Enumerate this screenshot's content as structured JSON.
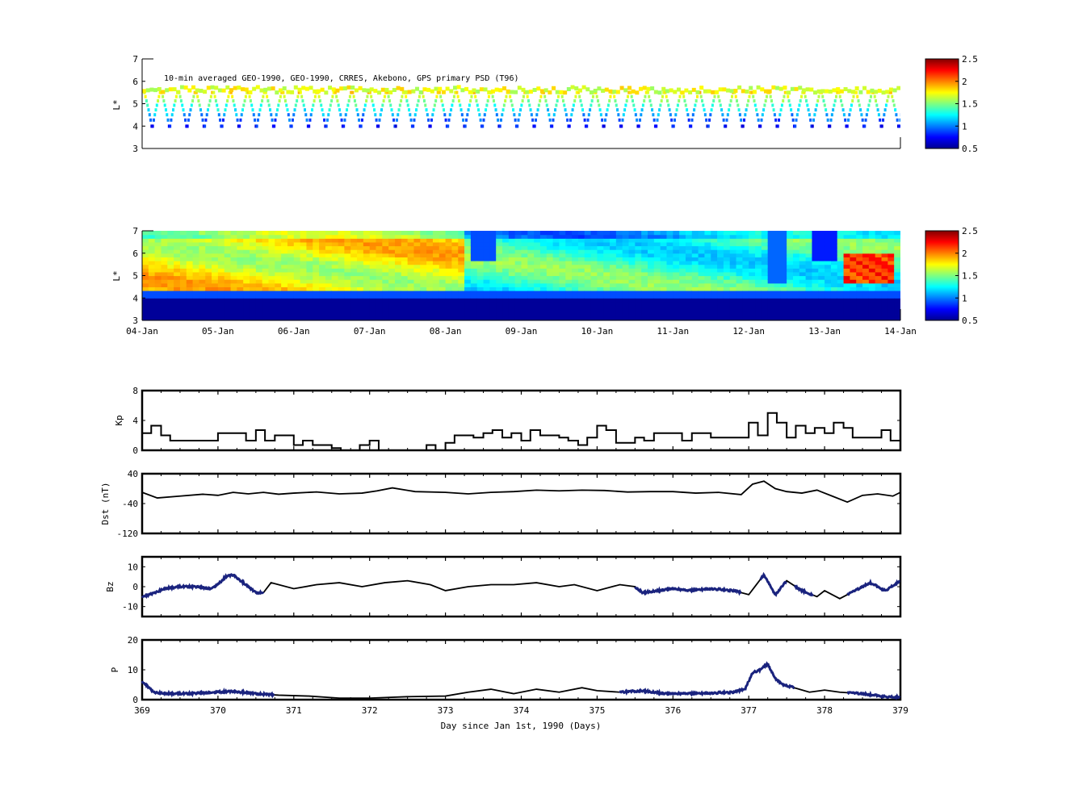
{
  "figure": {
    "colors": {
      "background": "#ffffff",
      "axes": "#000000",
      "thin_line": "#000000",
      "thick_line": "#1a237e",
      "colormap": "jet"
    }
  },
  "chart_data": [
    {
      "id": "psd-observed",
      "type": "heatmap",
      "title": "10-min averaged GEO-1990, GEO-1990, CRRES, Akebono, GPS  primary PSD (T96)",
      "ylabel": "L*",
      "ylim": [
        3,
        7
      ],
      "yticks": [
        "3",
        "4",
        "5",
        "6",
        "7"
      ],
      "xlim": [
        369,
        379
      ],
      "xticks": [],
      "colorbar": {
        "range": [
          0.5,
          2.5
        ],
        "ticks": [
          "0.5",
          "1",
          "1.5",
          "2",
          "2.5"
        ]
      },
      "description": "Sparse satellite orbit tracks: near-periodic V-shaped passes from L~5.5 down to L~3.8 roughly every 5.5 hours, values mostly 1.5-2 at high L and ~0.7 at low L",
      "orbit_period_days": 0.229,
      "track_top_L": 5.5,
      "track_min_L": 3.8
    },
    {
      "id": "psd-reanalysis",
      "type": "heatmap",
      "ylabel": "L*",
      "ylim": [
        3,
        7
      ],
      "yticks": [
        "3",
        "4",
        "5",
        "6",
        "7"
      ],
      "xlim": [
        369,
        379
      ],
      "xticks": [
        "04-Jan",
        "05-Jan",
        "06-Jan",
        "07-Jan",
        "08-Jan",
        "09-Jan",
        "10-Jan",
        "11-Jan",
        "12-Jan",
        "13-Jan",
        "14-Jan"
      ],
      "colorbar": {
        "range": [
          0.5,
          2.5
        ],
        "ticks": [
          "0.5",
          "1",
          "1.5",
          "2",
          "2.5"
        ]
      },
      "description": "Continuous PSD map: L<4 near 0.5; L 4.5-6.5 around 1.6-1.9 on Jan 4-8, dropping near 1.2-1.5 after Jan 8; dropouts near Jan 8.4 and Jan 12.3-13.3, enhancements near Jan 13"
    },
    {
      "id": "kp",
      "type": "line",
      "ylabel": "Kp",
      "ylim": [
        0,
        8
      ],
      "yticks": [
        "0",
        "4",
        "8"
      ],
      "xlim": [
        369,
        379
      ],
      "xticks": [],
      "series": [
        {
          "style": "step",
          "x": [
            369,
            369.12,
            369.25,
            369.37,
            369.5,
            370,
            370.37,
            370.5,
            370.62,
            370.75,
            371,
            371.12,
            371.25,
            371.5,
            371.62,
            371.87,
            372,
            372.12,
            372.25,
            372.5,
            372.75,
            372.87,
            373,
            373.12,
            373.37,
            373.5,
            373.62,
            373.75,
            373.87,
            374,
            374.12,
            374.25,
            374.5,
            374.62,
            374.75,
            374.87,
            375,
            375.12,
            375.25,
            375.5,
            375.62,
            375.75,
            376,
            376.12,
            376.25,
            376.5,
            376.75,
            377,
            377.12,
            377.25,
            377.37,
            377.5,
            377.62,
            377.75,
            377.87,
            378,
            378.12,
            378.25,
            378.37,
            378.5,
            378.75,
            378.87,
            379
          ],
          "y": [
            2.3,
            3.3,
            2,
            1.3,
            1.3,
            2.3,
            1.3,
            2.7,
            1.3,
            2,
            0.7,
            1.3,
            0.7,
            0.3,
            0,
            0.7,
            1.3,
            0,
            0,
            0,
            0.7,
            0,
            1,
            2,
            1.7,
            2.3,
            2.7,
            1.7,
            2.3,
            1.3,
            2.7,
            2,
            1.7,
            1.3,
            0.7,
            1.7,
            3.3,
            2.7,
            1,
            1.7,
            1.3,
            2.3,
            2.3,
            1.3,
            2.3,
            1.7,
            1.7,
            3.7,
            2,
            5,
            3.7,
            1.7,
            3.3,
            2.3,
            3,
            2.3,
            3.7,
            3,
            1.7,
            1.7,
            2.7,
            1.3,
            1.3
          ]
        }
      ]
    },
    {
      "id": "dst",
      "type": "line",
      "ylabel": "Dst (nT)",
      "ylim": [
        -120,
        40
      ],
      "yticks": [
        "-120",
        "-40",
        "40"
      ],
      "xlim": [
        369,
        379
      ],
      "xticks": [],
      "series": [
        {
          "style": "line",
          "x": [
            369,
            369.2,
            369.5,
            369.8,
            370,
            370.2,
            370.4,
            370.6,
            370.8,
            371,
            371.3,
            371.6,
            371.9,
            372.1,
            372.3,
            372.6,
            373,
            373.3,
            373.6,
            373.9,
            374.2,
            374.5,
            374.8,
            375.1,
            375.4,
            375.7,
            376,
            376.3,
            376.6,
            376.9,
            377.05,
            377.2,
            377.35,
            377.5,
            377.7,
            377.9,
            378.1,
            378.3,
            378.5,
            378.7,
            378.9,
            379
          ],
          "y": [
            -10,
            -25,
            -20,
            -15,
            -18,
            -10,
            -14,
            -10,
            -15,
            -12,
            -9,
            -14,
            -12,
            -6,
            2,
            -8,
            -10,
            -14,
            -10,
            -8,
            -4,
            -6,
            -4,
            -5,
            -9,
            -8,
            -8,
            -12,
            -10,
            -16,
            12,
            20,
            0,
            -8,
            -12,
            -4,
            -20,
            -36,
            -18,
            -14,
            -20,
            -10
          ]
        }
      ]
    },
    {
      "id": "bz",
      "type": "line",
      "ylabel": "Bz",
      "ylim": [
        -15,
        15
      ],
      "yticks": [
        "-10",
        "0",
        "10"
      ],
      "xlim": [
        369,
        379
      ],
      "xticks": [],
      "series": [
        {
          "style": "line",
          "x": [
            369,
            369.1,
            369.3,
            369.5,
            369.7,
            369.9,
            370,
            370.1,
            370.2,
            370.3,
            370.4,
            370.5,
            370.6,
            370.7,
            371,
            371.3,
            371.6,
            371.9,
            372.2,
            372.5,
            372.8,
            373,
            373.3,
            373.6,
            373.9,
            374.2,
            374.5,
            374.7,
            375,
            375.3,
            375.5,
            375.6,
            375.8,
            376,
            376.2,
            376.5,
            376.8,
            377,
            377.1,
            377.2,
            377.35,
            377.5,
            377.7,
            377.9,
            378,
            378.2,
            378.4,
            378.6,
            378.8,
            379
          ],
          "y": [
            -5,
            -4,
            -1,
            0,
            0,
            -1,
            1,
            5,
            6,
            3,
            0,
            -3,
            -3,
            2,
            -1,
            1,
            2,
            0,
            2,
            3,
            1,
            -2,
            0,
            1,
            1,
            2,
            0,
            1,
            -2,
            1,
            0,
            -3,
            -2,
            -1,
            -2,
            -1,
            -2,
            -4,
            1,
            6,
            -4,
            3,
            -2,
            -5,
            -2,
            -6,
            -2,
            2,
            -2,
            3
          ]
        },
        {
          "style": "noisy",
          "segments": [
            [
              369,
              370.6
            ],
            [
              375.5,
              376.9
            ],
            [
              377.15,
              377.5
            ],
            [
              377.6,
              377.85
            ],
            [
              378.3,
              379
            ]
          ]
        }
      ]
    },
    {
      "id": "p",
      "type": "line",
      "ylabel": "P",
      "ylim": [
        0,
        20
      ],
      "yticks": [
        "0",
        "10",
        "20"
      ],
      "xlim": [
        369,
        379
      ],
      "xticks": [
        "369",
        "370",
        "371",
        "372",
        "373",
        "374",
        "375",
        "376",
        "377",
        "378",
        "379"
      ],
      "xlabel": "Day since Jan 1st, 1990 (Days)",
      "series": [
        {
          "style": "line",
          "x": [
            369,
            369.05,
            369.15,
            369.3,
            369.6,
            370,
            370.2,
            370.5,
            370.8,
            371.2,
            371.6,
            372,
            372.5,
            373,
            373.3,
            373.6,
            373.9,
            374.2,
            374.5,
            374.8,
            375,
            375.3,
            375.6,
            375.9,
            376.2,
            376.5,
            376.8,
            376.95,
            377.05,
            377.15,
            377.25,
            377.35,
            377.45,
            377.6,
            377.8,
            378,
            378.2,
            378.5,
            378.8,
            379
          ],
          "y": [
            6,
            5,
            2.5,
            2,
            2,
            2.5,
            2.8,
            2,
            1.5,
            1.2,
            0.5,
            0.5,
            1,
            1.2,
            2.5,
            3.5,
            2,
            3.5,
            2.5,
            4,
            3,
            2.5,
            3,
            2,
            2,
            2.2,
            2.5,
            3.5,
            9,
            10,
            12,
            7,
            5,
            4,
            2.5,
            3.2,
            2.5,
            2,
            1,
            0.8
          ]
        },
        {
          "style": "noisy",
          "segments": [
            [
              369,
              370.75
            ],
            [
              375.3,
              377
            ],
            [
              377,
              377.6
            ],
            [
              378.3,
              379
            ]
          ]
        }
      ]
    }
  ]
}
